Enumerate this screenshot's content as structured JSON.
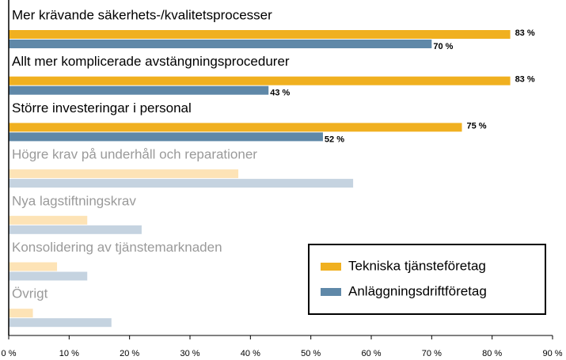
{
  "chart_data": {
    "type": "hbar",
    "categories": [
      "Mer krävande säkerhets-/kvalitetsprocesser",
      "Allt mer komplicerade avstängningsprocedurer",
      "Större investeringar i personal",
      "Högre krav på underhåll och reparationer",
      "Nya lagstiftningskrav",
      "Konsolidering av tjänstemarknaden",
      "Övrigt"
    ],
    "series": [
      {
        "name": "Tekniska tjänsteföretag",
        "color": "#f0b020",
        "faded_color": "#fde3b6",
        "values": [
          83,
          83,
          75,
          38,
          13,
          8,
          4
        ],
        "value_labels": [
          "83 %",
          "83 %",
          "75 %",
          null,
          null,
          null,
          null
        ]
      },
      {
        "name": "Anläggningsdriftföretag",
        "color": "#5f88a8",
        "faded_color": "#c5d3e0",
        "values": [
          70,
          43,
          52,
          57,
          22,
          13,
          17
        ],
        "value_labels": [
          "70 %",
          "43 %",
          "52 %",
          null,
          null,
          null,
          null
        ]
      }
    ],
    "xlim": [
      0,
      90
    ],
    "xticks": [
      {
        "value": 0,
        "label": "0 %"
      },
      {
        "value": 10,
        "label": "10 %"
      },
      {
        "value": 20,
        "label": "20 %"
      },
      {
        "value": 30,
        "label": "30 %"
      },
      {
        "value": 40,
        "label": "40 %"
      },
      {
        "value": 50,
        "label": "50 %"
      },
      {
        "value": 60,
        "label": "60 %"
      },
      {
        "value": 70,
        "label": "70 %"
      },
      {
        "value": 80,
        "label": "80 %"
      },
      {
        "value": 90,
        "label": "90 %"
      }
    ],
    "legend": "lower right"
  }
}
